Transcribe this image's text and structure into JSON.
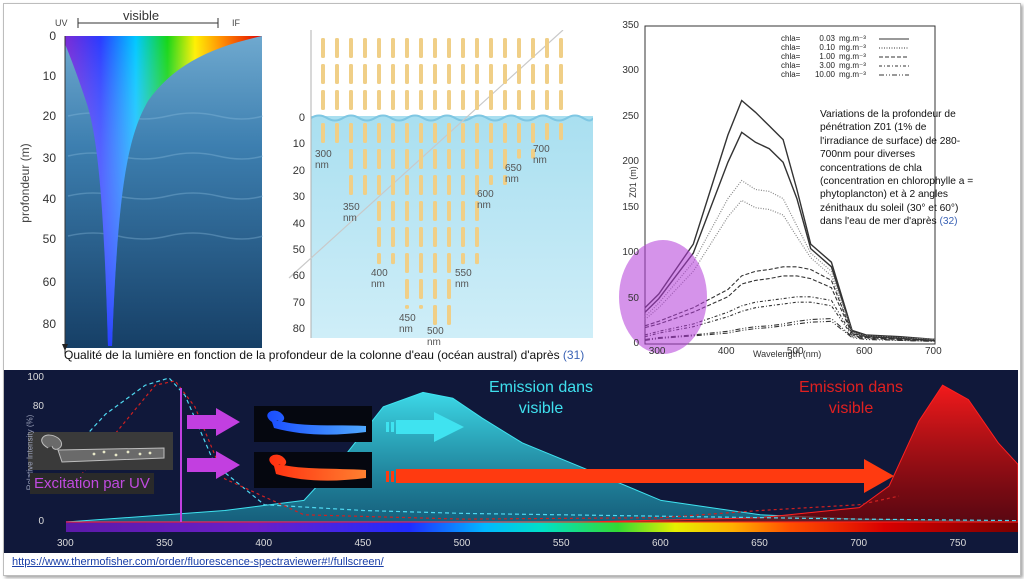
{
  "panel_light_depth": {
    "uv_label": "UV",
    "visible_label": "visible",
    "if_label": "IF",
    "ylabel": "profondeur (m)",
    "yticks": [
      "0",
      "10",
      "20",
      "30",
      "40",
      "50",
      "60",
      "80"
    ],
    "caption_text": "Qualité de la lumière en fonction de la profondeur de la colonne d'eau (océan austral) d'après",
    "caption_ref": "(31)"
  },
  "panel_penetration": {
    "yticks": [
      "0",
      "10",
      "20",
      "30",
      "40",
      "50",
      "60",
      "70",
      "80"
    ],
    "wavelength_labels": [
      {
        "l1": "300",
        "l2": "nm"
      },
      {
        "l1": "350",
        "l2": "nm"
      },
      {
        "l1": "400",
        "l2": "nm"
      },
      {
        "l1": "450",
        "l2": "nm"
      },
      {
        "l1": "500",
        "l2": "nm"
      },
      {
        "l1": "550",
        "l2": "nm"
      },
      {
        "l1": "600",
        "l2": "nm"
      },
      {
        "l1": "650",
        "l2": "nm"
      },
      {
        "l1": "700",
        "l2": "nm"
      }
    ],
    "chart_data": {
      "type": "bar",
      "categories": [
        "300 nm",
        "350 nm",
        "400 nm",
        "450 nm",
        "500 nm",
        "550 nm",
        "600 nm",
        "650 nm",
        "700 nm"
      ],
      "penetration_depth_m": [
        10,
        30,
        55,
        72,
        80,
        55,
        25,
        15,
        8
      ],
      "ylim": [
        0,
        80
      ]
    }
  },
  "panel_z01": {
    "ylabel": "Z01 (m)",
    "xlabel": "Wavelength (nm)",
    "yticks": [
      "350",
      "300",
      "250",
      "200",
      "150",
      "100",
      "50",
      "0"
    ],
    "xticks": [
      "300",
      "400",
      "500",
      "600",
      "700"
    ],
    "legend": [
      {
        "name": "chla=",
        "value": "0.03",
        "unit": "mg.m⁻³"
      },
      {
        "name": "chla=",
        "value": "0.10",
        "unit": "mg.m⁻³"
      },
      {
        "name": "chla=",
        "value": "1.00",
        "unit": "mg.m⁻³"
      },
      {
        "name": "chla=",
        "value": "3.00",
        "unit": "mg.m⁻³"
      },
      {
        "name": "chla=",
        "value": "10.00",
        "unit": "mg.m⁻³"
      }
    ],
    "note_lines": [
      "Variations de la profondeur de",
      "pénétration Z01 (1% de",
      "l'irradiance de surface) de 280-",
      "700nm pour diverses",
      "concentrations de chla",
      "(concentration en chlorophylle a =",
      "phytoplancton) et à 2 angles",
      "zénithaux du soleil (30° et  60°)"
    ],
    "note_last_line": "dans l'eau de mer d'après",
    "note_ref": "(32)",
    "chart_data": {
      "type": "line",
      "xlim": [
        280,
        700
      ],
      "ylim": [
        0,
        350
      ],
      "x": [
        280,
        300,
        350,
        400,
        420,
        440,
        460,
        480,
        500,
        520,
        550,
        580,
        600,
        650,
        700
      ],
      "series": [
        {
          "name": "chla= 0.03 mg.m⁻³",
          "values": [
            40,
            55,
            110,
            230,
            268,
            255,
            240,
            225,
            170,
            110,
            90,
            15,
            10,
            8,
            5
          ]
        },
        {
          "name": "chla= 0.03 mg.m⁻³",
          "values": [
            35,
            50,
            100,
            200,
            233,
            222,
            215,
            200,
            160,
            105,
            85,
            14,
            9,
            7,
            5
          ]
        },
        {
          "name": "chla= 0.10 mg.m⁻³",
          "values": [
            30,
            45,
            90,
            160,
            180,
            170,
            168,
            160,
            130,
            100,
            80,
            13,
            9,
            7,
            5
          ]
        },
        {
          "name": "chla= 0.10 mg.m⁻³",
          "values": [
            27,
            40,
            80,
            140,
            158,
            150,
            148,
            142,
            118,
            95,
            75,
            12,
            8,
            6,
            5
          ]
        },
        {
          "name": "chla= 1.00 mg.m⁻³",
          "values": [
            20,
            25,
            40,
            60,
            75,
            80,
            82,
            85,
            85,
            82,
            70,
            12,
            8,
            6,
            4
          ]
        },
        {
          "name": "chla= 1.00 mg.m⁻³",
          "values": [
            18,
            22,
            35,
            52,
            66,
            70,
            72,
            75,
            75,
            72,
            62,
            11,
            8,
            6,
            4
          ]
        },
        {
          "name": "chla= 3.00 mg.m⁻³",
          "values": [
            10,
            14,
            22,
            35,
            42,
            46,
            48,
            50,
            52,
            52,
            48,
            10,
            7,
            5,
            4
          ]
        },
        {
          "name": "chla= 3.00 mg.m⁻³",
          "values": [
            8,
            12,
            19,
            30,
            36,
            40,
            42,
            44,
            46,
            46,
            42,
            9,
            7,
            5,
            4
          ]
        },
        {
          "name": "chla= 10.00 mg.m⁻³",
          "values": [
            5,
            7,
            10,
            14,
            17,
            19,
            20,
            22,
            25,
            27,
            28,
            8,
            6,
            4,
            3
          ]
        },
        {
          "name": "chla= 10.00 mg.m⁻³",
          "values": [
            4,
            6,
            9,
            12,
            15,
            17,
            18,
            20,
            22,
            24,
            25,
            7,
            5,
            4,
            3
          ]
        }
      ]
    }
  },
  "panel_fluorescence": {
    "ylabel": "Relative Intensity (%)",
    "yticks": [
      "100",
      "80",
      "0"
    ],
    "xticks": [
      "300",
      "350",
      "400",
      "450",
      "500",
      "550",
      "600",
      "650",
      "700",
      "750"
    ],
    "excitation_label": "Excitation par UV",
    "emission_blue": [
      "Emission dans",
      "visible"
    ],
    "emission_red": [
      "Emission dans",
      "visible"
    ],
    "chart_data": {
      "type": "area",
      "xlim": [
        285,
        780
      ],
      "ylim": [
        0,
        100
      ],
      "series": [
        {
          "name": "",
          "kind": "cyan-emission",
          "x": [
            300,
            380,
            420,
            440,
            460,
            480,
            495,
            510,
            530,
            560,
            600,
            650,
            700,
            780
          ],
          "values": [
            0,
            8,
            15,
            45,
            80,
            90,
            86,
            72,
            55,
            38,
            15,
            5,
            2,
            0
          ]
        },
        {
          "name": "",
          "kind": "red-emission",
          "x": [
            300,
            560,
            650,
            700,
            715,
            730,
            742,
            755,
            770,
            780
          ],
          "values": [
            0,
            0,
            3,
            10,
            25,
            70,
            95,
            85,
            55,
            40
          ]
        },
        {
          "name": "",
          "kind": "cyan-excitation-dashed",
          "x": [
            300,
            320,
            340,
            352,
            360,
            375,
            400,
            450,
            500,
            600,
            700,
            780
          ],
          "values": [
            45,
            75,
            95,
            100,
            88,
            40,
            12,
            8,
            6,
            4,
            2,
            1
          ]
        },
        {
          "name": "",
          "kind": "red-excitation-dashed",
          "x": [
            300,
            330,
            345,
            355,
            365,
            380,
            420,
            500,
            600,
            650,
            700,
            720
          ],
          "values": [
            20,
            70,
            95,
            98,
            80,
            30,
            5,
            2,
            3,
            8,
            12,
            18
          ]
        }
      ]
    }
  },
  "source_url": "https://www.thermofisher.com/order/fluorescence-spectraviewer#!/fullscreen/"
}
